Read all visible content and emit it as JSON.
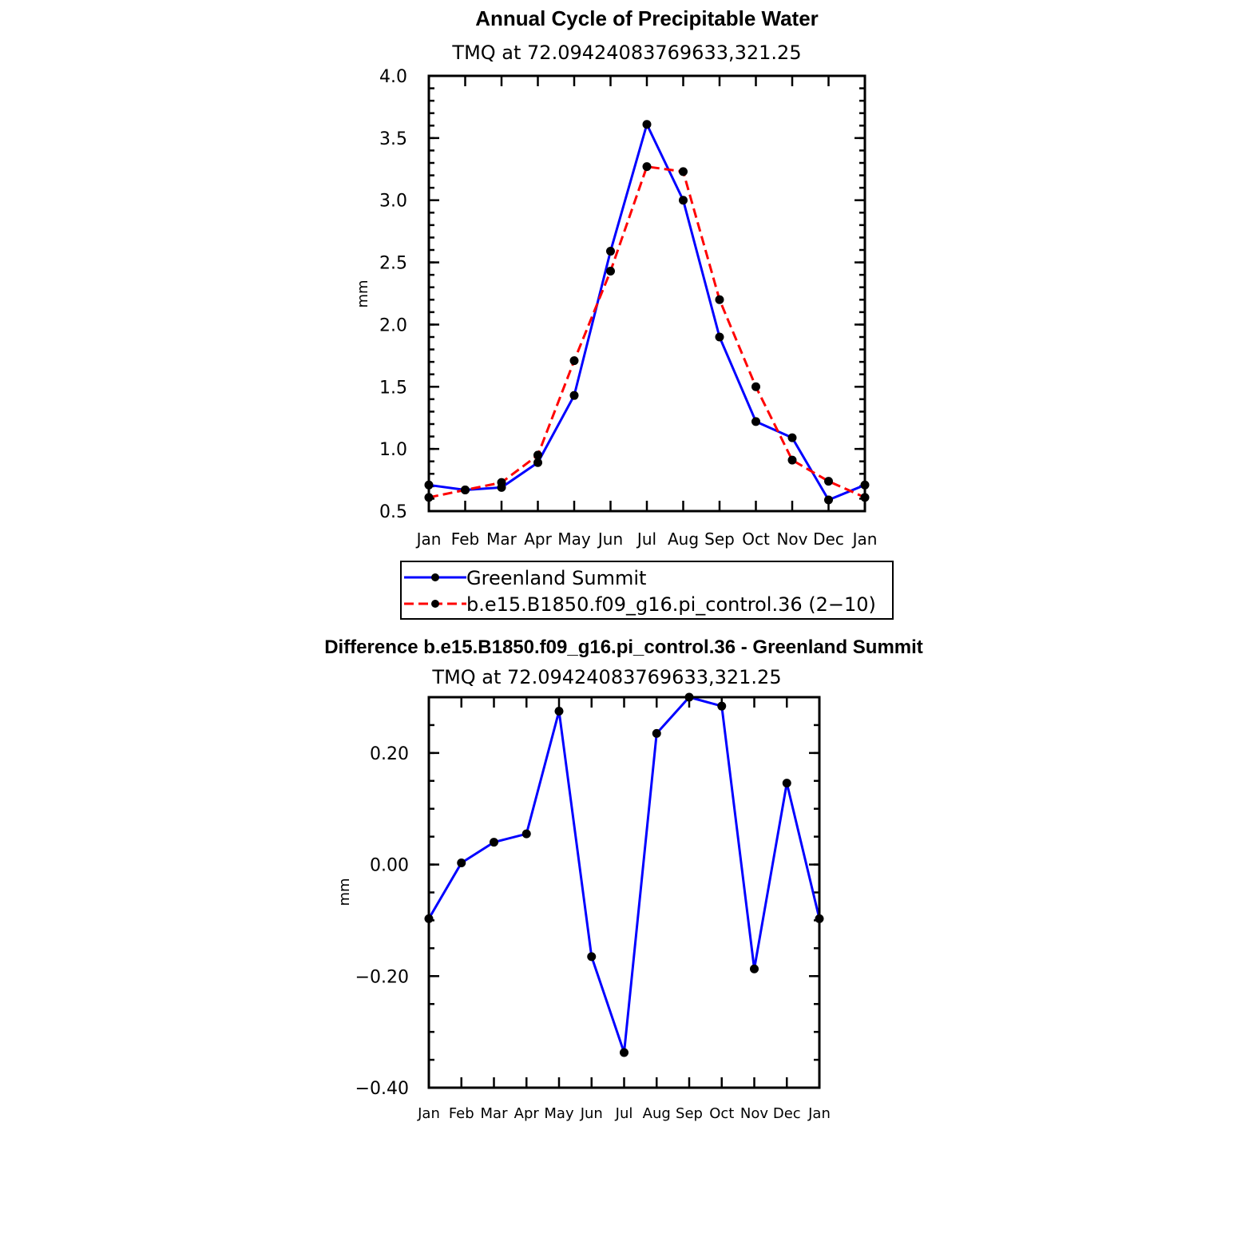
{
  "chart_data": [
    {
      "type": "line",
      "title": "Annual Cycle of Precipitable Water",
      "subtitle": "TMQ at 72.09424083769633,321.25",
      "ylabel": "mm",
      "xlabel": "",
      "ylim": [
        0.5,
        4.0
      ],
      "yticks": [
        "4.0",
        "3.5",
        "3.0",
        "2.5",
        "2.0",
        "1.5",
        "1.0",
        "0.5"
      ],
      "categories": [
        "Jan",
        "Feb",
        "Mar",
        "Apr",
        "May",
        "Jun",
        "Jul",
        "Aug",
        "Sep",
        "Oct",
        "Nov",
        "Dec",
        "Jan"
      ],
      "series": [
        {
          "name": "Greenland Summit",
          "color": "#0000ff",
          "dash": "solid",
          "values": [
            0.71,
            0.67,
            0.69,
            0.89,
            1.43,
            2.59,
            3.61,
            3.0,
            1.9,
            1.22,
            1.09,
            0.59,
            0.71
          ]
        },
        {
          "name": "b.e15.B1850.f09_g16.pi_control.36 (2−10)",
          "color": "#ff0000",
          "dash": "dashed",
          "values": [
            0.61,
            0.67,
            0.73,
            0.95,
            1.71,
            2.43,
            3.27,
            3.23,
            2.2,
            1.5,
            0.91,
            0.74,
            0.61
          ]
        }
      ],
      "legend": "below"
    },
    {
      "type": "line",
      "title": "Difference b.e15.B1850.f09_g16.pi_control.36 - Greenland Summit",
      "subtitle": "TMQ at 72.09424083769633,321.25",
      "ylabel": "mm",
      "xlabel": "",
      "ylim": [
        -0.4,
        0.3
      ],
      "yticks": [
        "0.20",
        "0.00",
        "−0.20",
        "−0.40"
      ],
      "categories": [
        "Jan",
        "Feb",
        "Mar",
        "Apr",
        "May",
        "Jun",
        "Jul",
        "Aug",
        "Sep",
        "Oct",
        "Nov",
        "Dec",
        "Jan"
      ],
      "series": [
        {
          "color": "#0000ff",
          "dash": "solid",
          "values": [
            -0.097,
            0.003,
            0.04,
            0.055,
            0.275,
            -0.165,
            -0.337,
            0.235,
            0.3,
            0.284,
            -0.187,
            0.146,
            -0.097
          ]
        }
      ]
    }
  ]
}
